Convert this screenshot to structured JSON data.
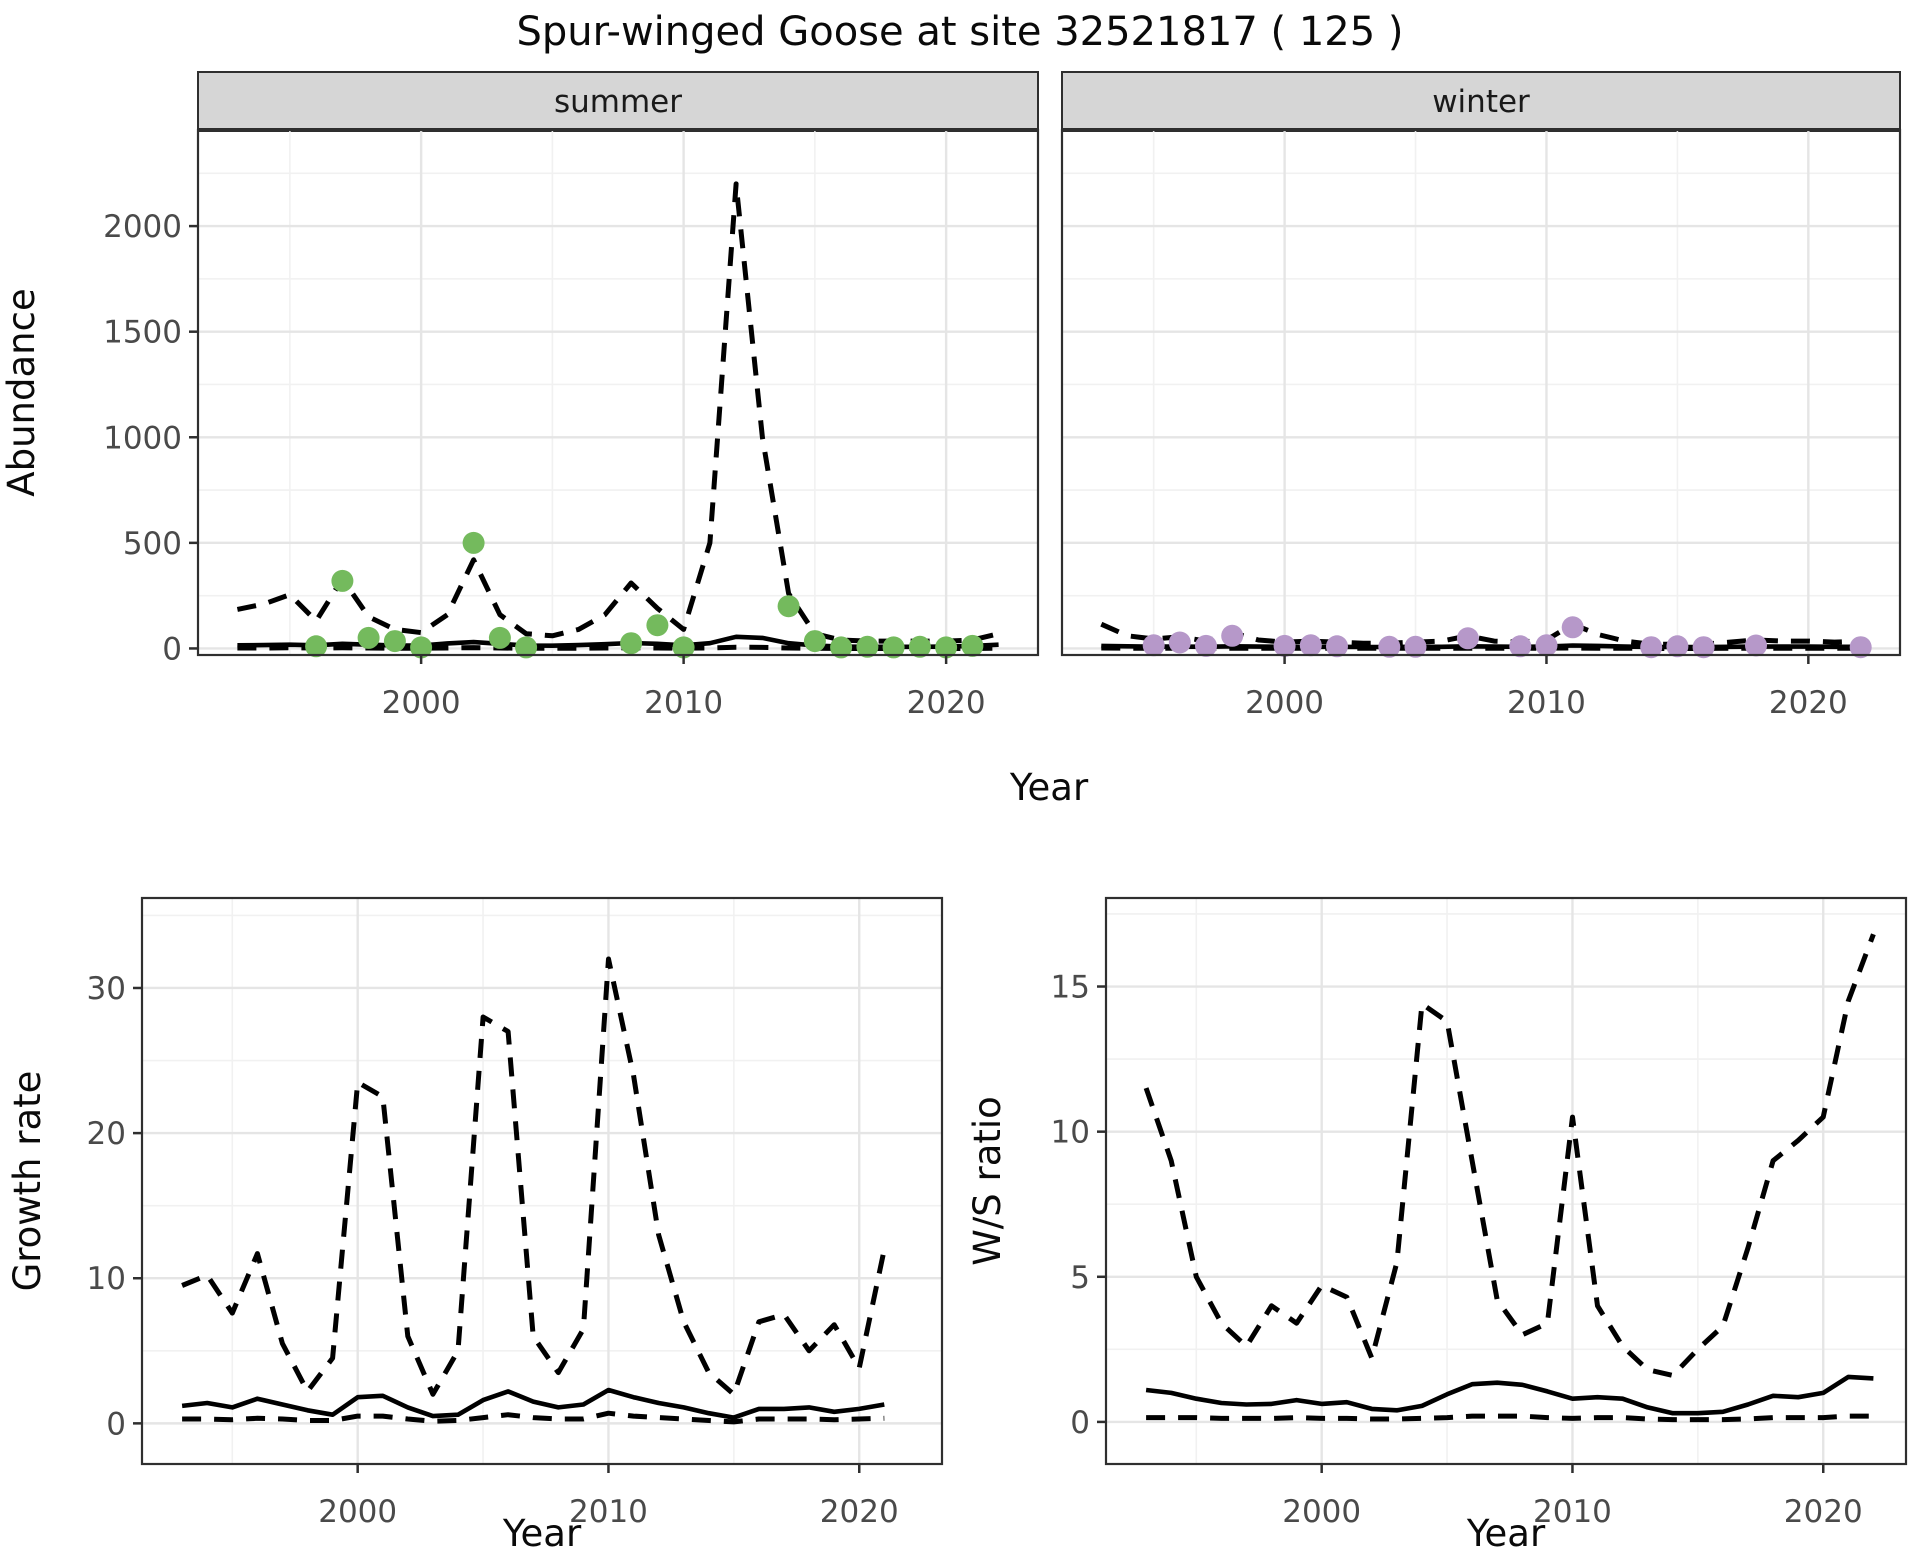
{
  "colors": {
    "summer_points": "#74ba5d",
    "winter_points": "#b698c9",
    "line": "#000000",
    "strip_bg": "#d6d6d6",
    "strip_text": "#1a1a1a",
    "grid_major": "#e5e5e5",
    "grid_minor": "#f1f1f1",
    "axis_text": "#4a4a4a",
    "title_text": "#0a0a0a",
    "panel_border": "#2f2f2f"
  },
  "chart_data": {
    "type": "line",
    "figure_title": "Spur-winged Goose at site 32521817 ( 125 )",
    "facet_row": {
      "ylabel": "Abundance",
      "xlabel": "Year",
      "x_ticks": [
        2000,
        2010,
        2020
      ],
      "x_minor": [
        1995,
        2005,
        2015
      ],
      "y_ticks": [
        0,
        500,
        1000,
        1500,
        2000
      ],
      "y_minor": [
        250,
        750,
        1250,
        1750,
        2250
      ],
      "xlim": [
        1991.5,
        2023.5
      ],
      "ylim": [
        -31,
        2455
      ],
      "grid": true,
      "legend": "none",
      "line_styles": {
        "upper_ci": "dashed",
        "fit": "solid",
        "lower_ci": "dashed"
      },
      "years": [
        1993,
        1994,
        1995,
        1996,
        1997,
        1998,
        1999,
        2000,
        2001,
        2002,
        2003,
        2004,
        2005,
        2006,
        2007,
        2008,
        2009,
        2010,
        2011,
        2012,
        2013,
        2014,
        2015,
        2016,
        2017,
        2018,
        2019,
        2020,
        2021,
        2022
      ],
      "panels": [
        {
          "strip": "summer",
          "point_color": "#74ba5d",
          "upper_ci": [
            185,
            210,
            255,
            130,
            330,
            150,
            90,
            75,
            160,
            420,
            160,
            70,
            60,
            90,
            160,
            310,
            190,
            90,
            500,
            2200,
            1000,
            260,
            70,
            40,
            35,
            35,
            35,
            35,
            40,
            70
          ],
          "fit": [
            15,
            16,
            18,
            15,
            22,
            18,
            14,
            14,
            24,
            30,
            22,
            14,
            13,
            16,
            20,
            26,
            22,
            15,
            25,
            55,
            50,
            25,
            14,
            9,
            8,
            8,
            8,
            9,
            12,
            18
          ],
          "lower_ci": [
            2,
            2,
            3,
            2,
            3,
            2,
            1,
            1,
            2,
            4,
            2,
            1,
            1,
            1,
            2,
            3,
            2,
            1,
            2,
            6,
            5,
            2,
            1,
            0,
            0,
            0,
            0,
            0,
            0,
            1
          ],
          "observed": {
            "years": [
              1996,
              1997,
              1998,
              1999,
              2000,
              2002,
              2003,
              2004,
              2008,
              2009,
              2010,
              2014,
              2015,
              2016,
              2017,
              2018,
              2019,
              2020,
              2021
            ],
            "values": [
              10,
              320,
              50,
              35,
              5,
              500,
              50,
              5,
              25,
              110,
              5,
              200,
              35,
              5,
              8,
              5,
              8,
              5,
              12
            ]
          }
        },
        {
          "strip": "winter",
          "point_color": "#b698c9",
          "upper_ci": [
            115,
            60,
            45,
            55,
            35,
            75,
            40,
            30,
            35,
            30,
            25,
            25,
            30,
            35,
            60,
            35,
            30,
            40,
            115,
            65,
            35,
            20,
            20,
            20,
            30,
            40,
            35,
            35,
            30,
            35
          ],
          "fit": [
            12,
            10,
            9,
            9,
            8,
            10,
            9,
            8,
            8,
            8,
            7,
            7,
            8,
            8,
            10,
            9,
            8,
            9,
            14,
            12,
            9,
            7,
            7,
            7,
            8,
            9,
            9,
            9,
            8,
            8
          ],
          "lower_ci": [
            2,
            1,
            1,
            1,
            1,
            1,
            1,
            1,
            1,
            1,
            1,
            1,
            1,
            1,
            1,
            1,
            1,
            1,
            2,
            1,
            1,
            0,
            0,
            0,
            1,
            1,
            1,
            1,
            1,
            1
          ],
          "observed": {
            "years": [
              1995,
              1996,
              1997,
              1998,
              2000,
              2001,
              2002,
              2004,
              2005,
              2007,
              2009,
              2010,
              2011,
              2014,
              2015,
              2016,
              2018,
              2022
            ],
            "values": [
              15,
              28,
              12,
              60,
              12,
              15,
              10,
              8,
              8,
              48,
              10,
              15,
              100,
              6,
              10,
              6,
              14,
              6
            ]
          }
        }
      ]
    },
    "bottom_row": [
      {
        "id": "growth-rate",
        "ylabel": "Growth rate",
        "xlabel": "Year",
        "x_ticks": [
          2000,
          2010,
          2020
        ],
        "x_minor": [
          1995,
          2005,
          2015
        ],
        "y_ticks": [
          0,
          10,
          20,
          30
        ],
        "y_minor": [
          5,
          15,
          25,
          35
        ],
        "xlim": [
          1991.4,
          2023.3
        ],
        "ylim": [
          -2.8,
          36.2
        ],
        "grid": true,
        "legend": "none",
        "line_styles": {
          "upper_ci": "dashed",
          "fit": "solid",
          "lower_ci": "dashed"
        },
        "years": [
          1993,
          1994,
          1995,
          1996,
          1997,
          1998,
          1999,
          2000,
          2001,
          2002,
          2003,
          2004,
          2005,
          2006,
          2007,
          2008,
          2009,
          2010,
          2011,
          2012,
          2013,
          2014,
          2015,
          2016,
          2017,
          2018,
          2019,
          2020,
          2021
        ],
        "upper_ci": [
          9.5,
          10.2,
          7.6,
          11.7,
          5.5,
          2.2,
          4.5,
          23.5,
          22.5,
          6.0,
          2.0,
          5.0,
          28.0,
          27.0,
          6.0,
          3.5,
          6.5,
          32.0,
          24.0,
          13.0,
          7.0,
          3.5,
          2.0,
          7.0,
          7.5,
          5.0,
          6.8,
          3.8,
          12.0
        ],
        "fit": [
          1.2,
          1.4,
          1.1,
          1.7,
          1.3,
          0.9,
          0.6,
          1.8,
          1.9,
          1.1,
          0.5,
          0.6,
          1.6,
          2.2,
          1.5,
          1.1,
          1.3,
          2.3,
          1.8,
          1.4,
          1.1,
          0.7,
          0.4,
          1.0,
          1.0,
          1.1,
          0.8,
          1.0,
          1.3
        ],
        "lower_ci": [
          0.3,
          0.3,
          0.25,
          0.35,
          0.3,
          0.2,
          0.2,
          0.5,
          0.5,
          0.3,
          0.15,
          0.2,
          0.4,
          0.6,
          0.4,
          0.3,
          0.3,
          0.7,
          0.5,
          0.4,
          0.3,
          0.2,
          0.1,
          0.3,
          0.3,
          0.3,
          0.25,
          0.3,
          0.35
        ]
      },
      {
        "id": "ws-ratio",
        "ylabel": "W/S ratio",
        "xlabel": "Year",
        "x_ticks": [
          2000,
          2010,
          2020
        ],
        "x_minor": [
          1995,
          2005,
          2015
        ],
        "y_ticks": [
          0,
          5,
          10,
          15
        ],
        "y_minor": [
          2.5,
          7.5,
          12.5,
          17.5
        ],
        "xlim": [
          1991.4,
          2023.3
        ],
        "ylim": [
          -1.45,
          18.05
        ],
        "grid": true,
        "legend": "none",
        "line_styles": {
          "upper_ci": "dashed",
          "fit": "solid",
          "lower_ci": "dashed"
        },
        "years": [
          1993,
          1994,
          1995,
          1996,
          1997,
          1998,
          1999,
          2000,
          2001,
          2002,
          2003,
          2004,
          2005,
          2006,
          2007,
          2008,
          2009,
          2010,
          2011,
          2012,
          2013,
          2014,
          2015,
          2016,
          2017,
          2018,
          2019,
          2020,
          2021,
          2022
        ],
        "upper_ci": [
          11.5,
          9.0,
          5.0,
          3.4,
          2.6,
          4.0,
          3.4,
          4.7,
          4.3,
          2.2,
          5.5,
          14.4,
          13.8,
          9.0,
          4.2,
          3.0,
          3.4,
          10.5,
          4.0,
          2.6,
          1.8,
          1.6,
          2.5,
          3.3,
          6.0,
          9.0,
          9.7,
          10.5,
          14.5,
          16.8
        ],
        "fit": [
          1.1,
          1.0,
          0.8,
          0.65,
          0.6,
          0.62,
          0.75,
          0.62,
          0.68,
          0.45,
          0.4,
          0.55,
          0.95,
          1.3,
          1.35,
          1.28,
          1.05,
          0.8,
          0.85,
          0.8,
          0.5,
          0.3,
          0.3,
          0.35,
          0.6,
          0.9,
          0.85,
          1.0,
          1.55,
          1.5
        ],
        "lower_ci": [
          0.15,
          0.15,
          0.15,
          0.12,
          0.12,
          0.12,
          0.15,
          0.12,
          0.12,
          0.1,
          0.1,
          0.12,
          0.15,
          0.2,
          0.2,
          0.2,
          0.15,
          0.12,
          0.15,
          0.15,
          0.1,
          0.08,
          0.08,
          0.08,
          0.1,
          0.15,
          0.15,
          0.15,
          0.2,
          0.2
        ]
      }
    ]
  }
}
